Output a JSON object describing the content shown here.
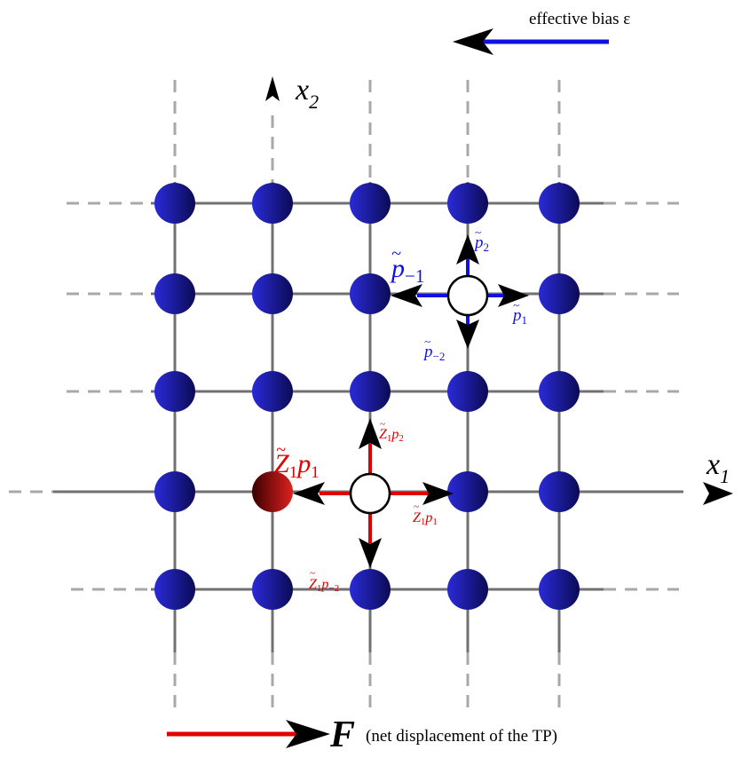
{
  "labels": {
    "bias": "effective bias ε",
    "x2_axis": "x",
    "x2_sub": "2",
    "x1_axis": "x",
    "x1_sub": "1",
    "force": "F",
    "force_caption": "(net displacement of the TP)",
    "p_minus1": "p",
    "p_minus1_sub": "−1",
    "p_2": "p",
    "p_2_sub": "2",
    "p_1": "p",
    "p_1_sub": "1",
    "p_minus2": "p",
    "p_minus2_sub": "−2",
    "z_p1": "Z",
    "z_p1_sub1": "1",
    "z_p1_p": "p",
    "z_p1_sub2": "1",
    "z_ptilde2": "Z",
    "z_ptilde2_sub1": "1",
    "z_ptilde2_p": "p",
    "z_ptilde2_sub2": "2",
    "z_ptilde1": "Z",
    "z_ptilde1_sub1": "1",
    "z_ptilde1_p": "p",
    "z_ptilde1_sub2": "1",
    "z_ptildem2": "Z",
    "z_ptildem2_sub1": "1",
    "z_ptildem2_p": "p",
    "z_ptildem2_sub2": "−2"
  },
  "colors": {
    "particle_dark": "#0b0b55",
    "particle_light": "#2a2ad8",
    "tracer_dark": "#3a0000",
    "tracer_light": "#e02020",
    "grid": "#707070",
    "dashed": "#a8a8a8",
    "blue": "#1010e0",
    "red": "#e00000",
    "black": "#000000"
  }
}
